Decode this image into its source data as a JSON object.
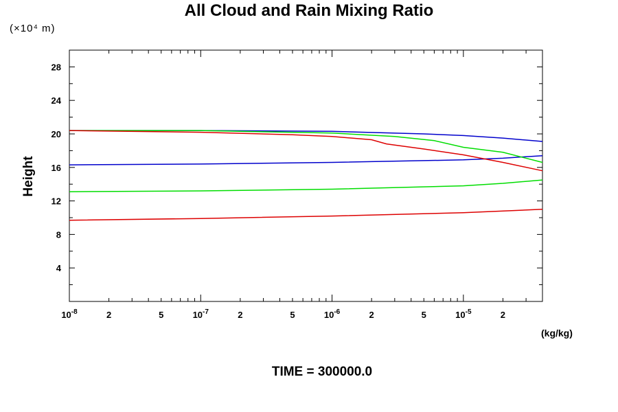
{
  "chart_data": {
    "type": "line",
    "title": "All Cloud and Rain Mixing Ratio",
    "ylabel": "Height",
    "y_unit": "(×10⁴ m)",
    "x_unit": "(kg/kg)",
    "footer": "TIME = 300000.0",
    "xscale": "log",
    "xlim": [
      1e-08,
      4e-05
    ],
    "ylim": [
      0,
      30
    ],
    "y_ticks": [
      4,
      8,
      12,
      16,
      20,
      24,
      28
    ],
    "x_ticks": [
      {
        "value": 1e-08,
        "label": "10",
        "exp": "-8"
      },
      {
        "value": 2e-08,
        "label": "2"
      },
      {
        "value": 5e-08,
        "label": "5"
      },
      {
        "value": 1e-07,
        "label": "10",
        "exp": "-7"
      },
      {
        "value": 2e-07,
        "label": "2"
      },
      {
        "value": 5e-07,
        "label": "5"
      },
      {
        "value": 1e-06,
        "label": "10",
        "exp": "-6"
      },
      {
        "value": 2e-06,
        "label": "2"
      },
      {
        "value": 5e-06,
        "label": "5"
      },
      {
        "value": 1e-05,
        "label": "10",
        "exp": "-5"
      },
      {
        "value": 2e-05,
        "label": "2"
      }
    ],
    "grid": false,
    "series": [
      {
        "color": "#0000cc",
        "points": [
          [
            1e-08,
            20.4
          ],
          [
            1e-07,
            20.4
          ],
          [
            1e-06,
            20.3
          ],
          [
            5e-06,
            20.0
          ],
          [
            1e-05,
            19.8
          ],
          [
            2e-05,
            19.5
          ],
          [
            4e-05,
            19.1
          ]
        ]
      },
      {
        "color": "#0000cc",
        "points": [
          [
            1e-08,
            16.3
          ],
          [
            1e-07,
            16.4
          ],
          [
            1e-06,
            16.6
          ],
          [
            1e-05,
            16.9
          ],
          [
            2e-05,
            17.1
          ],
          [
            4e-05,
            17.4
          ]
        ]
      },
      {
        "color": "#00dd00",
        "points": [
          [
            1e-08,
            20.4
          ],
          [
            1e-07,
            20.4
          ],
          [
            1e-06,
            20.1
          ],
          [
            3e-06,
            19.7
          ],
          [
            6e-06,
            19.2
          ],
          [
            1e-05,
            18.4
          ],
          [
            2e-05,
            17.8
          ],
          [
            4e-05,
            16.6
          ]
        ]
      },
      {
        "color": "#00dd00",
        "points": [
          [
            1e-08,
            13.1
          ],
          [
            1e-07,
            13.2
          ],
          [
            1e-06,
            13.4
          ],
          [
            1e-05,
            13.8
          ],
          [
            2e-05,
            14.1
          ],
          [
            4e-05,
            14.5
          ]
        ]
      },
      {
        "color": "#dd0000",
        "points": [
          [
            1e-08,
            20.4
          ],
          [
            1e-07,
            20.2
          ],
          [
            5e-07,
            19.9
          ],
          [
            1e-06,
            19.7
          ],
          [
            2e-06,
            19.3
          ],
          [
            2.6e-06,
            18.8
          ],
          [
            5e-06,
            18.2
          ],
          [
            1e-05,
            17.5
          ],
          [
            2e-05,
            16.6
          ],
          [
            4e-05,
            15.6
          ]
        ]
      },
      {
        "color": "#dd0000",
        "points": [
          [
            1e-08,
            9.7
          ],
          [
            1e-07,
            9.9
          ],
          [
            1e-06,
            10.2
          ],
          [
            1e-05,
            10.6
          ],
          [
            4e-05,
            11.0
          ]
        ]
      }
    ]
  }
}
